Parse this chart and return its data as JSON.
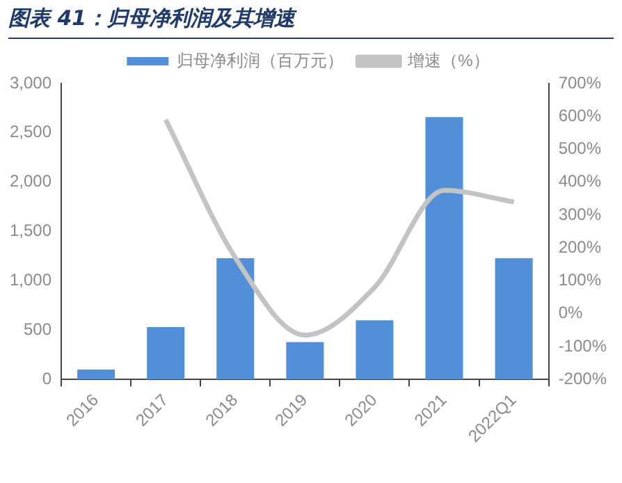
{
  "chart_data": {
    "type": "bar",
    "title": "图表 41：归母净利润及其增速",
    "categories": [
      "2016",
      "2017",
      "2018",
      "2019",
      "2020",
      "2021",
      "2022Q1"
    ],
    "series": [
      {
        "name": "归母净利润（百万元）",
        "color": "#5190d8",
        "values": [
          100,
          530,
          1230,
          380,
          600,
          2660,
          1230
        ]
      },
      {
        "name": "增速（%）",
        "type": "line",
        "axis": "y2",
        "color": "#c3c3c3",
        "values": [
          null,
          590,
          170,
          -65,
          80,
          375,
          340
        ]
      }
    ],
    "ylim": [
      0,
      3000
    ],
    "yticks": [
      {
        "value": 0,
        "label": "0"
      },
      {
        "value": 500,
        "label": "500"
      },
      {
        "value": 1000,
        "label": "1,000"
      },
      {
        "value": 1500,
        "label": "1,500"
      },
      {
        "value": 2000,
        "label": "2,000"
      },
      {
        "value": 2500,
        "label": "2,500"
      },
      {
        "value": 3000,
        "label": "3,000"
      }
    ],
    "y2lim": [
      -200,
      700
    ],
    "y2ticks": [
      {
        "value": -200,
        "label": "-200%"
      },
      {
        "value": -100,
        "label": "-100%"
      },
      {
        "value": 0,
        "label": "0%"
      },
      {
        "value": 100,
        "label": "100%"
      },
      {
        "value": 200,
        "label": "200%"
      },
      {
        "value": 300,
        "label": "300%"
      },
      {
        "value": 400,
        "label": "400%"
      },
      {
        "value": 500,
        "label": "500%"
      },
      {
        "value": 600,
        "label": "600%"
      },
      {
        "value": 700,
        "label": "700%"
      }
    ],
    "grid": false,
    "legend": "top",
    "marker": "none",
    "line_style": "solid"
  }
}
